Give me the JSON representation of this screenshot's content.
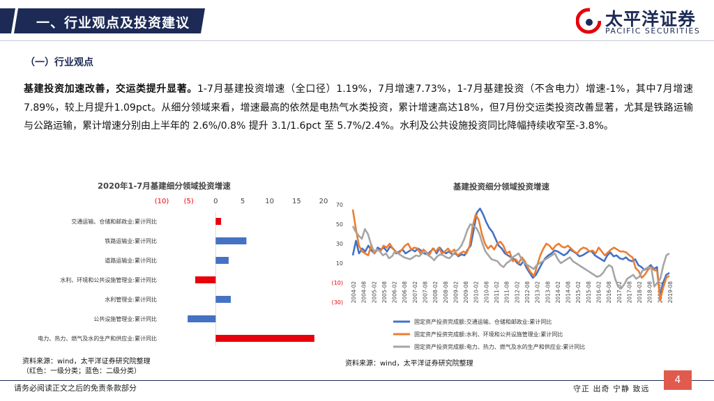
{
  "header": {
    "title": "一、行业观点及投资建议"
  },
  "logo": {
    "name_cn": "太平洋证券",
    "name_en": "PACIFIC SECURITIES"
  },
  "section": {
    "heading": "（一）行业观点"
  },
  "paragraph": {
    "lead": "基建投资加速改善，交运类提升显著。",
    "body": "1-7月基建投资增速（全口径）1.19%，7月增速7.73%，1-7月基建投资（不含电力）增速-1%，其中7月增速7.89%，较上月提升1.09pct。从细分领域来看，增速最高的依然是电热气水类投资，累计增速高达18%，但7月份交运类投资改善显著，尤其是铁路运输与公路运输，累计增速分别由上半年的 2.6%/0.8% 提升 3.1/1.6pct 至 5.7%/2.4%。水利及公共设施投资同比降幅持续收窄至-3.8%。"
  },
  "colors": {
    "navy": "#1c2a55",
    "red": "#e8000b",
    "blue": "#4472c4",
    "orange": "#ed7d31",
    "gray": "#a5a5a5",
    "page_badge": "#e05a4d"
  },
  "chart_data": [
    {
      "type": "bar",
      "orientation": "horizontal",
      "title": "2020年1-7月基建细分领域投资增速",
      "xlim": [
        -10,
        20
      ],
      "x_ticks": [
        "(10)",
        "(5)",
        "0",
        "5",
        "10",
        "15",
        "20"
      ],
      "x_tick_values": [
        -10,
        -5,
        0,
        5,
        10,
        15,
        20
      ],
      "categories": [
        "交通运输、仓储和邮政业:累计同比",
        "铁路运输业:累计同比",
        "道路运输业:累计同比",
        "水利、环境和公共设施管理业:累计同比",
        "水利管理业:累计同比",
        "公共设施管理业:累计同比",
        "电力、热力、燃气及水的生产和供应业:累计同比"
      ],
      "values": [
        1.0,
        5.7,
        2.4,
        -3.8,
        2.8,
        -5.2,
        18.3
      ],
      "bar_colors": [
        "#e8000b",
        "#4472c4",
        "#4472c4",
        "#e8000b",
        "#4472c4",
        "#4472c4",
        "#e8000b"
      ]
    },
    {
      "type": "line",
      "title": "基建投资细分领域投资增速",
      "ylim": [
        -30,
        70
      ],
      "y_ticks": [
        "70",
        "50",
        "30",
        "10",
        "(10)",
        "(30)"
      ],
      "y_tick_values": [
        70,
        50,
        30,
        10,
        -10,
        -30
      ],
      "x_ticks": [
        "2004-02",
        "2004-08",
        "2005-02",
        "2005-08",
        "2006-02",
        "2006-08",
        "2007-02",
        "2007-08",
        "2008-02",
        "2008-08",
        "2009-02",
        "2009-08",
        "2010-02",
        "2010-08",
        "2011-02",
        "2011-08",
        "2012-02",
        "2012-08",
        "2013-02",
        "2013-08",
        "2014-02",
        "2014-08",
        "2015-02",
        "2015-08",
        "2016-02",
        "2016-08",
        "2017-02",
        "2017-08",
        "2018-02",
        "2018-08",
        "2019-02",
        "2019-08"
      ],
      "series": [
        {
          "name": "固定资产投资完成额:交通运输、仓储和邮政业:累计同比",
          "color": "#4472c4",
          "values": [
            18,
            33,
            20,
            25,
            22,
            28,
            23,
            20,
            26,
            24,
            26,
            22,
            27,
            25,
            20,
            22,
            24,
            20,
            22,
            24,
            22,
            25,
            23,
            20,
            19,
            22,
            25,
            20,
            26,
            22,
            20,
            22,
            19,
            20,
            17,
            19,
            18,
            24,
            28,
            45,
            62,
            66,
            60,
            52,
            46,
            42,
            35,
            28,
            25,
            20,
            18,
            16,
            14,
            10,
            8,
            12,
            5,
            0,
            -5,
            -2,
            4,
            10,
            15,
            18,
            20,
            23,
            22,
            20,
            18,
            20,
            24,
            22,
            20,
            17,
            18,
            20,
            22,
            22,
            18,
            16,
            14,
            12,
            18,
            21,
            17,
            18,
            15,
            14,
            16,
            13,
            12,
            14,
            8,
            6,
            3,
            5,
            8,
            4,
            6,
            -25,
            -10,
            -2,
            0
          ]
        },
        {
          "name": "固定资产投资完成额:水利、环境和公共设施管理业:累计同比",
          "color": "#ed7d31",
          "values": [
            65,
            45,
            28,
            22,
            20,
            18,
            28,
            20,
            24,
            22,
            28,
            26,
            30,
            25,
            22,
            20,
            24,
            28,
            30,
            24,
            26,
            25,
            20,
            24,
            21,
            19,
            25,
            22,
            26,
            20,
            22,
            25,
            21,
            24,
            18,
            20,
            22,
            20,
            28,
            48,
            60,
            54,
            40,
            30,
            25,
            28,
            24,
            30,
            32,
            28,
            20,
            22,
            12,
            14,
            10,
            16,
            12,
            5,
            0,
            -3,
            8,
            18,
            25,
            30,
            28,
            24,
            28,
            30,
            27,
            26,
            28,
            25,
            22,
            20,
            24,
            26,
            25,
            22,
            23,
            20,
            26,
            22,
            18,
            21,
            24,
            26,
            24,
            22,
            22,
            21,
            18,
            16,
            5,
            2,
            -5,
            -2,
            3,
            6,
            3,
            2,
            -28,
            -15,
            -5,
            -3
          ]
        },
        {
          "name": "固定资产投资完成额:电力、热力、燃气及水的生产和供应业:累计同比",
          "color": "#a5a5a5",
          "values": [
            48,
            42,
            38,
            35,
            45,
            40,
            30,
            22,
            24,
            22,
            18,
            20,
            15,
            17,
            22,
            20,
            18,
            16,
            15,
            14,
            16,
            18,
            17,
            20,
            22,
            18,
            16,
            13,
            17,
            19,
            18,
            16,
            15,
            18,
            22,
            24,
            28,
            35,
            44,
            50,
            48,
            46,
            40,
            30,
            22,
            18,
            14,
            13,
            12,
            8,
            6,
            10,
            12,
            16,
            18,
            20,
            14,
            10,
            8,
            6,
            4,
            8,
            10,
            12,
            14,
            16,
            18,
            20,
            14,
            10,
            12,
            14,
            16,
            12,
            10,
            8,
            6,
            4,
            2,
            0,
            -2,
            -4,
            -3,
            0,
            5,
            8,
            6,
            -6,
            -14,
            -16,
            -12,
            -6,
            -4,
            -2,
            -6,
            -4,
            2,
            4,
            6,
            5,
            -14,
            -10,
            -6,
            8,
            18,
            20
          ]
        }
      ]
    }
  ],
  "sources": {
    "left": "资料来源：wind，太平洋证券研究院整理",
    "left_note": "（红色：一级分类；蓝色：二级分类）",
    "right": "资料来源：wind，太平洋证券研究院整理"
  },
  "footer": {
    "disclaimer": "请务必阅读正文之后的免责条款部分",
    "motto": "守正  出奇  宁静  致远",
    "page": "4"
  }
}
